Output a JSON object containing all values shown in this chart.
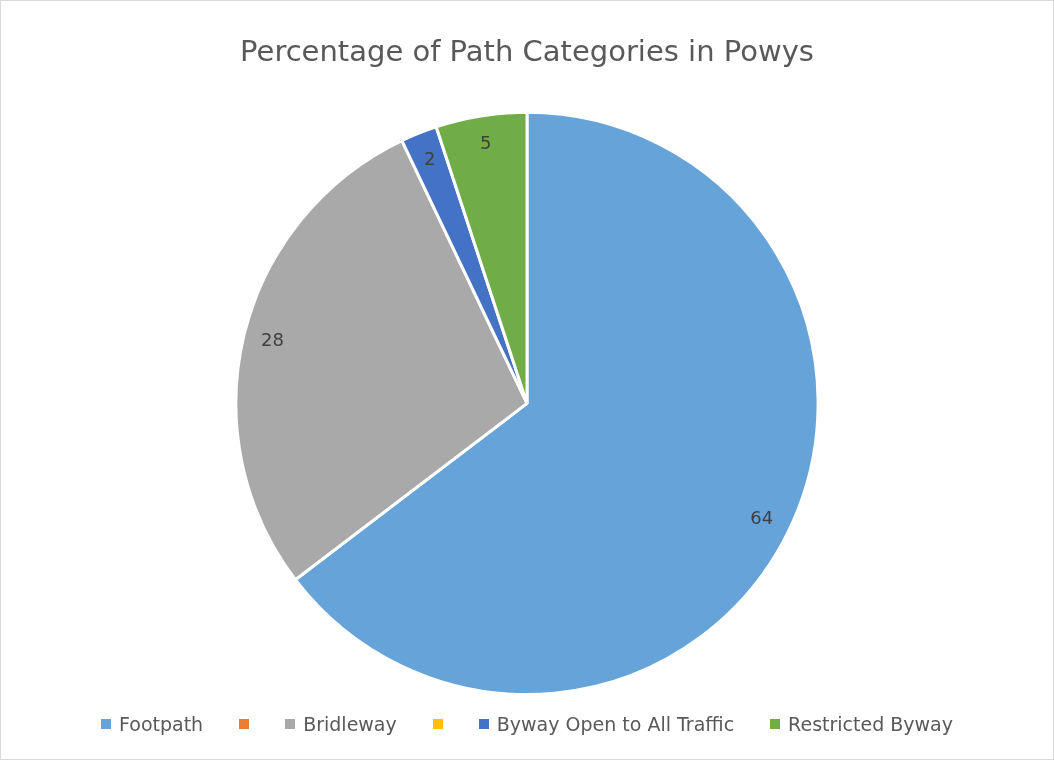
{
  "chart_data": {
    "type": "pie",
    "title": "Percentage of Path Categories in Powys",
    "categories": [
      "Footpath",
      null,
      "Bridleway",
      null,
      "Byway Open to All Traffic",
      "Restricted Byway"
    ],
    "values": [
      64,
      0,
      28,
      0,
      2,
      5
    ],
    "colors": [
      "#66a3d9",
      "#ed7d31",
      "#a9a9a9",
      "#ffc000",
      "#4472c4",
      "#70ad47"
    ],
    "value_labels": [
      "64",
      null,
      "28",
      null,
      "2",
      "5"
    ],
    "legend": "bottom"
  }
}
